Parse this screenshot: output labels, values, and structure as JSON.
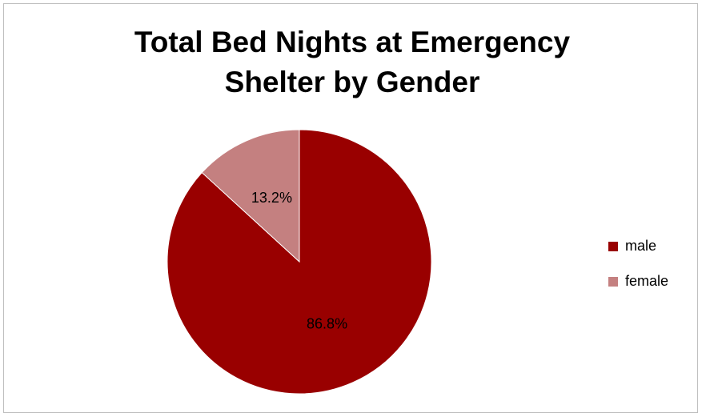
{
  "chart_data": {
    "type": "pie",
    "title": "Total Bed Nights at Emergency Shelter by Gender",
    "categories": [
      "male",
      "female"
    ],
    "values": [
      86.8,
      13.2
    ],
    "value_labels": [
      "86.8%",
      "13.2%"
    ],
    "colors": [
      "#990000",
      "#c48080"
    ],
    "legend": "right"
  }
}
